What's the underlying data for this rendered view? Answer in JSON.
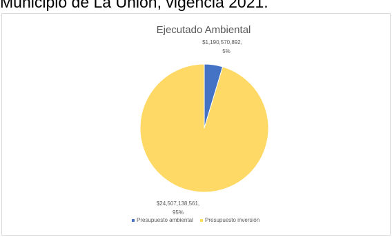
{
  "caption": "Municipio de La Unión, vigencia 2021.",
  "chart_data": {
    "type": "pie",
    "title": "Ejecutado Ambiental",
    "categories": [
      "Presupuesto ambiental",
      "Presupuesto inversión"
    ],
    "values": [
      1190570892,
      24507138561
    ],
    "percent_labels": [
      "5%",
      "95%"
    ],
    "value_labels": [
      "$1,190,570,892,",
      "$24,507,138,561,"
    ],
    "colors": [
      "#4472c4",
      "#ffd966"
    ],
    "legend": "bottom"
  }
}
